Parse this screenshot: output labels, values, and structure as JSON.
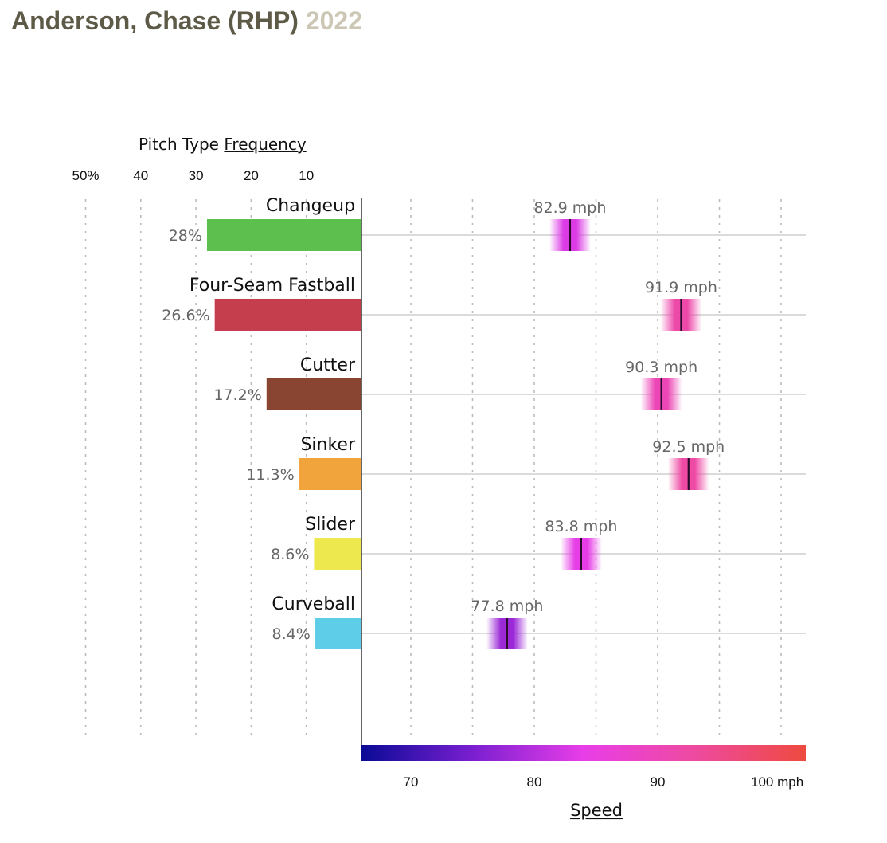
{
  "header": {
    "player": "Anderson, Chase (RHP)",
    "year": "2022"
  },
  "freq_title": {
    "prefix": "Pitch Type",
    "link": "Frequency"
  },
  "speed_title": "Speed",
  "chart_data": {
    "type": "bar",
    "freq_axis": {
      "range": [
        0,
        50
      ],
      "ticks": [
        {
          "value": 50,
          "label": "50%"
        },
        {
          "value": 40,
          "label": "40"
        },
        {
          "value": 30,
          "label": "30"
        },
        {
          "value": 20,
          "label": "20"
        },
        {
          "value": 10,
          "label": "10"
        }
      ]
    },
    "speed_axis": {
      "range": [
        66,
        102
      ],
      "ticks": [
        {
          "value": 70,
          "label": "70"
        },
        {
          "value": 80,
          "label": "80"
        },
        {
          "value": 90,
          "label": "90"
        },
        {
          "value": 100,
          "label": "100 mph"
        }
      ],
      "gridlines": [
        70,
        75,
        80,
        85,
        90,
        95,
        100
      ],
      "gradient": [
        "#0a0a96",
        "#7a1fd0",
        "#e83ee8",
        "#ee4aa0",
        "#ee4a40"
      ]
    },
    "pitches": [
      {
        "name": "Changeup",
        "freq": 28.0,
        "freq_label": "28%",
        "speed": 82.9,
        "speed_label": "82.9 mph",
        "color": "#5cbf4e"
      },
      {
        "name": "Four-Seam Fastball",
        "freq": 26.6,
        "freq_label": "26.6%",
        "speed": 91.9,
        "speed_label": "91.9 mph",
        "color": "#c43e4e"
      },
      {
        "name": "Cutter",
        "freq": 17.2,
        "freq_label": "17.2%",
        "speed": 90.3,
        "speed_label": "90.3 mph",
        "color": "#8a4432"
      },
      {
        "name": "Sinker",
        "freq": 11.3,
        "freq_label": "11.3%",
        "speed": 92.5,
        "speed_label": "92.5 mph",
        "color": "#f2a43c"
      },
      {
        "name": "Slider",
        "freq": 8.6,
        "freq_label": "8.6%",
        "speed": 83.8,
        "speed_label": "83.8 mph",
        "color": "#ece84e"
      },
      {
        "name": "Curveball",
        "freq": 8.4,
        "freq_label": "8.4%",
        "speed": 77.8,
        "speed_label": "77.8 mph",
        "color": "#5ecde8"
      }
    ]
  }
}
